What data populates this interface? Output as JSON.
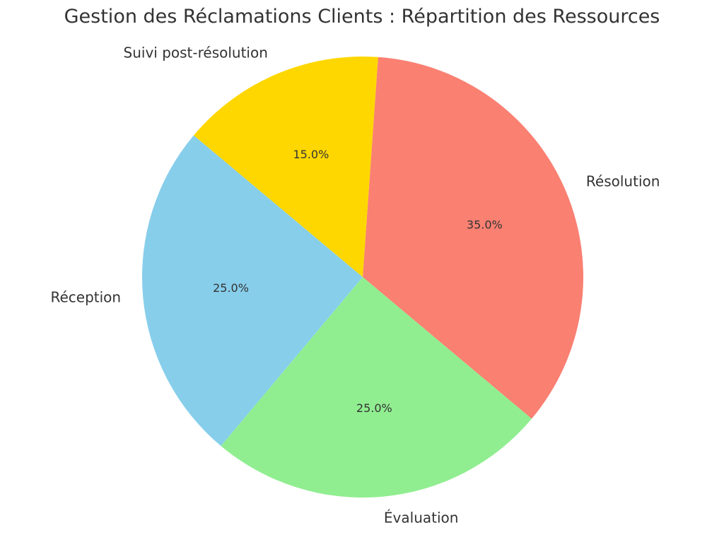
{
  "chart_data": {
    "type": "pie",
    "title": "Gestion des Réclamations Clients : Répartition des Ressources",
    "slices": [
      {
        "label": "Résolution",
        "value": 35.0,
        "pct_label": "35.0%",
        "color": "#fa8072"
      },
      {
        "label": "Évaluation",
        "value": 25.0,
        "pct_label": "25.0%",
        "color": "#90ee90"
      },
      {
        "label": "Réception",
        "value": 25.0,
        "pct_label": "25.0%",
        "color": "#87ceeb"
      },
      {
        "label": "Suivi post-résolution",
        "value": 15.0,
        "pct_label": "15.0%",
        "color": "#ffd700"
      }
    ],
    "start_angle_deg": 86,
    "direction": "clockwise",
    "legend": "none"
  }
}
